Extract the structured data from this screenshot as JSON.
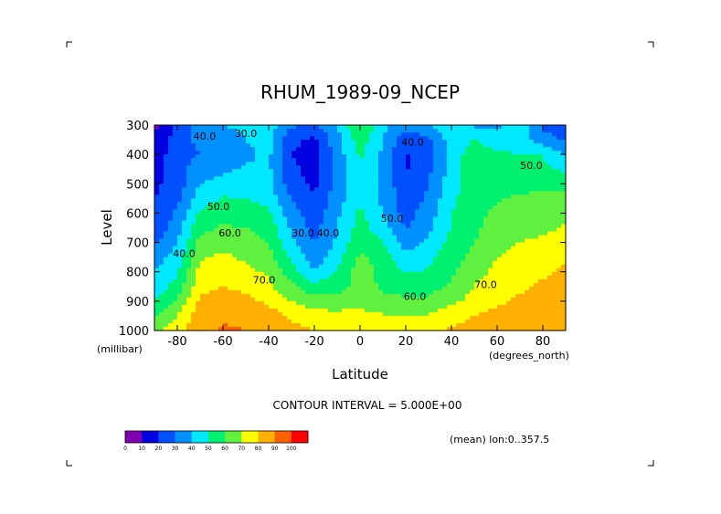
{
  "chart_data": {
    "type": "heatmap",
    "title": "RHUM_1989-09_NCEP",
    "xlabel": "Latitude",
    "ylabel": "Level",
    "x_units": "(degrees_north)",
    "y_units": "(millibar)",
    "x_ticks": [
      -80,
      -60,
      -40,
      -20,
      0,
      20,
      40,
      60,
      80
    ],
    "x_tick_labels": [
      "-80",
      "-60",
      "-40",
      "-20",
      "0",
      "20",
      "40",
      "60",
      "80"
    ],
    "y_ticks": [
      300,
      400,
      500,
      600,
      700,
      800,
      900,
      1000
    ],
    "y_tick_labels": [
      "300",
      "400",
      "500",
      "600",
      "700",
      "800",
      "900",
      "1000"
    ],
    "xlim": [
      -90,
      90
    ],
    "ylim": [
      1000,
      300
    ],
    "contour_interval_text": "CONTOUR INTERVAL = 5.000E+00",
    "mean_text": "(mean) lon:0..357.5",
    "contour_labels": [
      {
        "text": "40.0",
        "lat": -68,
        "lev": 350
      },
      {
        "text": "30.0",
        "lat": -50,
        "lev": 340
      },
      {
        "text": "50.0",
        "lat": -62,
        "lev": 590
      },
      {
        "text": "60.0",
        "lat": -57,
        "lev": 680
      },
      {
        "text": "40.0",
        "lat": -77,
        "lev": 750
      },
      {
        "text": "70.0",
        "lat": -42,
        "lev": 840
      },
      {
        "text": "30.0",
        "lat": -25,
        "lev": 680
      },
      {
        "text": "40.0",
        "lat": -14,
        "lev": 680
      },
      {
        "text": "50.0",
        "lat": 14,
        "lev": 630
      },
      {
        "text": "40.0",
        "lat": 23,
        "lev": 370
      },
      {
        "text": "60.0",
        "lat": 24,
        "lev": 895
      },
      {
        "text": "70.0",
        "lat": 55,
        "lev": 855
      },
      {
        "text": "50.0",
        "lat": 75,
        "lev": 450
      }
    ],
    "grid_lat": [
      -90,
      -80,
      -70,
      -60,
      -50,
      -40,
      -30,
      -20,
      -10,
      0,
      10,
      20,
      30,
      40,
      50,
      60,
      70,
      80,
      90
    ],
    "grid_lev": [
      300,
      350,
      400,
      450,
      500,
      550,
      600,
      650,
      700,
      750,
      800,
      850,
      900,
      950,
      1000
    ],
    "values": [
      [
        8,
        22,
        38,
        40,
        42,
        45,
        32,
        28,
        40,
        62,
        42,
        35,
        38,
        50,
        38,
        38,
        48,
        28,
        20
      ],
      [
        12,
        24,
        33,
        36,
        40,
        44,
        22,
        18,
        36,
        56,
        40,
        22,
        28,
        44,
        50,
        45,
        45,
        35,
        28
      ],
      [
        14,
        26,
        30,
        34,
        38,
        42,
        20,
        16,
        35,
        52,
        38,
        19,
        26,
        44,
        56,
        52,
        50,
        50,
        40
      ],
      [
        16,
        26,
        35,
        38,
        41,
        42,
        22,
        16,
        34,
        49,
        37,
        19,
        28,
        44,
        57,
        55,
        52,
        52,
        48
      ],
      [
        18,
        25,
        40,
        44,
        44,
        42,
        25,
        18,
        34,
        47,
        37,
        22,
        30,
        46,
        56,
        57,
        55,
        57,
        58
      ],
      [
        20,
        27,
        45,
        51,
        50,
        46,
        30,
        20,
        35,
        49,
        38,
        24,
        32,
        48,
        56,
        59,
        62,
        63,
        63
      ],
      [
        21,
        32,
        52,
        57,
        55,
        52,
        34,
        24,
        38,
        52,
        40,
        26,
        35,
        50,
        57,
        62,
        64,
        66,
        68
      ],
      [
        22,
        36,
        57,
        61,
        60,
        56,
        38,
        27,
        40,
        54,
        44,
        29,
        38,
        51,
        58,
        64,
        66,
        68,
        71
      ],
      [
        28,
        40,
        64,
        66,
        64,
        60,
        42,
        29,
        42,
        58,
        50,
        35,
        42,
        53,
        60,
        68,
        70,
        72,
        74
      ],
      [
        35,
        44,
        69,
        72,
        68,
        64,
        48,
        34,
        46,
        62,
        55,
        43,
        48,
        55,
        63,
        70,
        72,
        74,
        78
      ],
      [
        40,
        48,
        73,
        76,
        73,
        68,
        54,
        40,
        51,
        65,
        57,
        49,
        51,
        58,
        67,
        72,
        74,
        78,
        82
      ],
      [
        44,
        54,
        77,
        80,
        78,
        72,
        62,
        54,
        55,
        65,
        58,
        56,
        56,
        62,
        70,
        75,
        78,
        82,
        85
      ],
      [
        50,
        62,
        82,
        84,
        82,
        78,
        70,
        64,
        63,
        67,
        63,
        62,
        62,
        68,
        73,
        78,
        82,
        85,
        87
      ],
      [
        60,
        70,
        86,
        89,
        88,
        85,
        78,
        74,
        74,
        73,
        71,
        70,
        71,
        76,
        80,
        83,
        86,
        88,
        89
      ],
      [
        68,
        75,
        88,
        91,
        90,
        88,
        84,
        80,
        80,
        78,
        78,
        77,
        78,
        81,
        84,
        86,
        88,
        90,
        90
      ]
    ],
    "colorbar": {
      "levels": [
        0,
        10,
        20,
        30,
        40,
        50,
        60,
        70,
        80,
        90,
        100
      ],
      "labels": [
        "0",
        "10",
        "20",
        "30",
        "40",
        "50",
        "60",
        "70",
        "80",
        "90",
        "100"
      ],
      "colors": [
        "#8000b0",
        "#0000e0",
        "#0050ff",
        "#0090ff",
        "#00e8ff",
        "#00f070",
        "#60f040",
        "#ffff00",
        "#ffb000",
        "#ff6000",
        "#ff0000"
      ]
    }
  }
}
